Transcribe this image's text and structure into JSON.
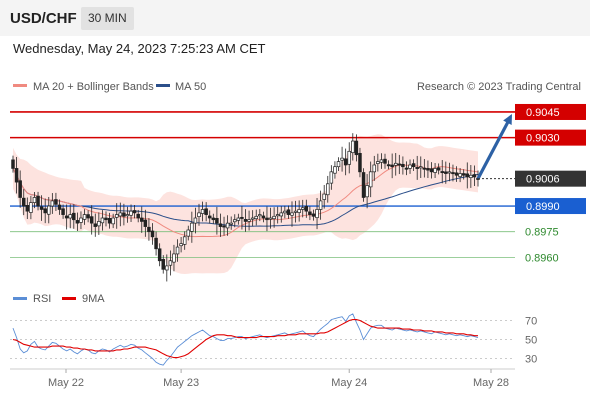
{
  "header": {
    "pair": "USD/CHF",
    "interval": "30 MIN"
  },
  "timestamp": "Wednesday, May 24, 2023 7:25:23 AM CET",
  "legend": {
    "ma20": "MA 20 + Bollinger Bands",
    "ma50": "MA 50",
    "rsi": "RSI",
    "rsi_ma": "9MA"
  },
  "source": "Research © 2023 Trading Central",
  "colors": {
    "band": "#fde3df",
    "ma20": "#f08a80",
    "ma50": "#2b4f8a",
    "resistance": "#d40000",
    "support": "#1a5fd1",
    "target": "#2f8a2f",
    "arrow": "#2d61a5",
    "last": "#333333",
    "rsi": "#5b8ed6",
    "rsi_ma": "#e00000"
  },
  "chart_data": [
    {
      "type": "candlestick",
      "x_ticks": [
        "May 22",
        "May 23",
        "May 24",
        "May 28"
      ],
      "ylim": [
        0.8945,
        0.9052
      ],
      "last_price": "0.9006",
      "levels": [
        {
          "label": "0.9045",
          "value": 0.9045,
          "kind": "resistance"
        },
        {
          "label": "0.9030",
          "value": 0.903,
          "kind": "resistance"
        },
        {
          "label": "0.8990",
          "value": 0.899,
          "kind": "support"
        },
        {
          "label": "0.8975",
          "value": 0.8975,
          "kind": "target"
        },
        {
          "label": "0.8960",
          "value": 0.896,
          "kind": "target"
        }
      ],
      "closes": [
        0.9012,
        0.9004,
        0.8995,
        0.899,
        0.8987,
        0.8992,
        0.8995,
        0.899,
        0.8988,
        0.8986,
        0.899,
        0.8993,
        0.8991,
        0.8988,
        0.8985,
        0.8983,
        0.8985,
        0.8982,
        0.898,
        0.8983,
        0.8985,
        0.8983,
        0.898,
        0.8978,
        0.8981,
        0.8983,
        0.8982,
        0.898,
        0.8983,
        0.8985,
        0.8986,
        0.8984,
        0.8985,
        0.8987,
        0.8986,
        0.8983,
        0.8981,
        0.8978,
        0.8975,
        0.8972,
        0.8965,
        0.8958,
        0.8953,
        0.8955,
        0.8958,
        0.8962,
        0.8966,
        0.8968,
        0.8972,
        0.8976,
        0.898,
        0.8983,
        0.8986,
        0.8988,
        0.8985,
        0.8983,
        0.8982,
        0.898,
        0.8978,
        0.8978,
        0.898,
        0.898,
        0.8982,
        0.8983,
        0.8983,
        0.8981,
        0.8982,
        0.8983,
        0.8984,
        0.8985,
        0.8983,
        0.8982,
        0.8983,
        0.8984,
        0.8985,
        0.8986,
        0.8987,
        0.8985,
        0.8986,
        0.8987,
        0.8988,
        0.8989,
        0.8987,
        0.8985,
        0.8984,
        0.8988,
        0.8993,
        0.8997,
        0.9003,
        0.901,
        0.9013,
        0.9016,
        0.9018,
        0.9014,
        0.9022,
        0.9028,
        0.902,
        0.901,
        0.8995,
        0.9002,
        0.901,
        0.9014,
        0.9016,
        0.9017,
        0.9015,
        0.9014,
        0.9013,
        0.9015,
        0.9014,
        0.9013,
        0.9012,
        0.9014,
        0.9013,
        0.9012,
        0.9013,
        0.9012,
        0.9011,
        0.901,
        0.9012,
        0.9011,
        0.901,
        0.9009,
        0.901,
        0.9009,
        0.9008,
        0.9009,
        0.9008,
        0.9007,
        0.9008,
        0.9007,
        0.9006
      ],
      "forecast": [
        0.9006,
        0.9045
      ]
    },
    {
      "type": "line",
      "y_ticks": [
        70,
        50,
        30
      ],
      "ylim": [
        20,
        80
      ],
      "series": [
        {
          "name": "RSI",
          "values": [
            62,
            52,
            40,
            36,
            38,
            45,
            48,
            42,
            40,
            39,
            43,
            47,
            46,
            43,
            40,
            38,
            40,
            37,
            35,
            38,
            40,
            39,
            36,
            35,
            38,
            40,
            39,
            37,
            40,
            42,
            44,
            42,
            43,
            45,
            44,
            41,
            39,
            36,
            33,
            30,
            26,
            24,
            23,
            28,
            32,
            37,
            42,
            45,
            48,
            51,
            54,
            56,
            58,
            60,
            57,
            54,
            53,
            51,
            49,
            49,
            51,
            51,
            52,
            53,
            53,
            51,
            52,
            53,
            54,
            55,
            53,
            52,
            53,
            54,
            55,
            56,
            57,
            55,
            56,
            57,
            58,
            59,
            56,
            54,
            53,
            57,
            61,
            64,
            67,
            71,
            72,
            73,
            74,
            69,
            75,
            77,
            68,
            60,
            50,
            56,
            62,
            64,
            65,
            65,
            62,
            61,
            60,
            62,
            61,
            60,
            59,
            60,
            59,
            58,
            59,
            58,
            57,
            56,
            58,
            57,
            56,
            55,
            56,
            55,
            54,
            55,
            54,
            53,
            54,
            53,
            52
          ]
        },
        {
          "name": "9MA",
          "values": [
            50,
            49,
            47,
            45,
            44,
            43,
            42,
            42,
            42,
            42,
            42,
            43,
            43,
            43,
            43,
            42,
            42,
            41,
            41,
            40,
            40,
            39,
            39,
            38,
            38,
            38,
            38,
            38,
            38,
            39,
            39,
            40,
            40,
            41,
            42,
            42,
            42,
            42,
            41,
            40,
            39,
            37,
            35,
            33,
            32,
            31,
            31,
            32,
            33,
            35,
            38,
            41,
            44,
            47,
            50,
            52,
            54,
            55,
            55,
            55,
            54,
            54,
            53,
            52,
            52,
            52,
            52,
            52,
            52,
            53,
            53,
            53,
            53,
            53,
            54,
            54,
            54,
            55,
            55,
            55,
            56,
            56,
            56,
            56,
            56,
            56,
            57,
            57,
            58,
            60,
            62,
            64,
            66,
            68,
            70,
            71,
            71,
            70,
            68,
            66,
            64,
            63,
            62,
            62,
            62,
            62,
            62,
            62,
            62,
            61,
            61,
            61,
            60,
            60,
            60,
            59,
            59,
            59,
            58,
            58,
            58,
            57,
            57,
            57,
            56,
            56,
            56,
            55,
            55,
            54,
            54
          ]
        }
      ]
    }
  ]
}
